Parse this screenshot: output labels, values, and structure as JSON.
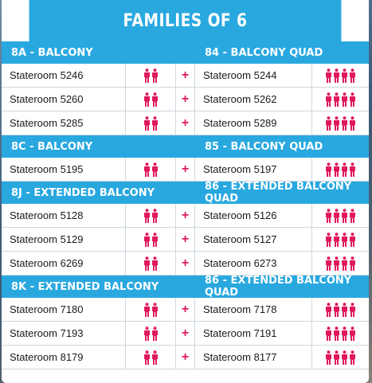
{
  "title": "FAMILIES OF 6",
  "colors": {
    "header_bg": "#29a8e0",
    "accent": "#e0195f",
    "text": "#1a1a1a"
  },
  "icons": {
    "person": "person-icon",
    "plus": "plus-icon"
  },
  "sections": [
    {
      "left_title": "8A - BALCONY",
      "right_title": "84 - BALCONY QUAD",
      "rows": [
        {
          "left": "Stateroom 5246",
          "left_people": 2,
          "plus": "+",
          "right": "Stateroom 5244",
          "right_people": 4
        },
        {
          "left": "Stateroom 5260",
          "left_people": 2,
          "plus": "+",
          "right": "Stateroom 5262",
          "right_people": 4
        },
        {
          "left": "Stateroom 5285",
          "left_people": 2,
          "plus": "+",
          "right": "Stateroom 5289",
          "right_people": 4
        }
      ]
    },
    {
      "left_title": "8C - BALCONY",
      "right_title": "85 - BALCONY QUAD",
      "rows": [
        {
          "left": "Stateroom 5195",
          "left_people": 2,
          "plus": "+",
          "right": "Stateroom 5197",
          "right_people": 4
        }
      ]
    },
    {
      "left_title": "8J - EXTENDED BALCONY",
      "right_title": "86 - EXTENDED BALCONY QUAD",
      "rows": [
        {
          "left": "Stateroom 5128",
          "left_people": 2,
          "plus": "+",
          "right": "Stateroom 5126",
          "right_people": 4
        },
        {
          "left": "Stateroom 5129",
          "left_people": 2,
          "plus": "+",
          "right": "Stateroom 5127",
          "right_people": 4
        },
        {
          "left": "Stateroom 6269",
          "left_people": 2,
          "plus": "+",
          "right": "Stateroom 6273",
          "right_people": 4
        }
      ]
    },
    {
      "left_title": "8K - EXTENDED BALCONY",
      "right_title": "86 - EXTENDED BALCONY QUAD",
      "rows": [
        {
          "left": "Stateroom 7180",
          "left_people": 2,
          "plus": "+",
          "right": "Stateroom 7178",
          "right_people": 4
        },
        {
          "left": "Stateroom 7193",
          "left_people": 2,
          "plus": "+",
          "right": "Stateroom 7191",
          "right_people": 4
        },
        {
          "left": "Stateroom 8179",
          "left_people": 2,
          "plus": "+",
          "right": "Stateroom 8177",
          "right_people": 4
        }
      ]
    }
  ]
}
